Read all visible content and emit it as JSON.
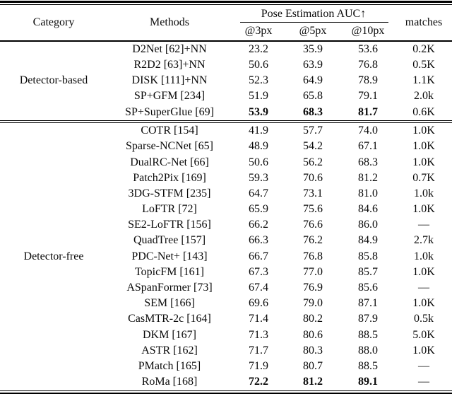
{
  "page": {
    "background_color": "#ffffff",
    "text_color": "#0a0a0a"
  },
  "table": {
    "headers": {
      "category": "Category",
      "methods": "Methods",
      "auc_group": "Pose Estimation AUC↑",
      "auc_cols": [
        "@3px",
        "@5px",
        "@10px"
      ],
      "matches": "matches"
    },
    "sections": [
      {
        "category": "Detector-based",
        "rows": [
          {
            "method": "D2Net [62]+NN",
            "auc3": "23.2",
            "auc5": "35.9",
            "auc10": "53.6",
            "matches": "0.2K",
            "bold": false
          },
          {
            "method": "R2D2 [63]+NN",
            "auc3": "50.6",
            "auc5": "63.9",
            "auc10": "76.8",
            "matches": "0.5K",
            "bold": false
          },
          {
            "method": "DISK [111]+NN",
            "auc3": "52.3",
            "auc5": "64.9",
            "auc10": "78.9",
            "matches": "1.1K",
            "bold": false
          },
          {
            "method": "SP+GFM [234]",
            "auc3": "51.9",
            "auc5": "65.8",
            "auc10": "79.1",
            "matches": "2.0k",
            "bold": false
          },
          {
            "method": "SP+SuperGlue [69]",
            "auc3": "53.9",
            "auc5": "68.3",
            "auc10": "81.7",
            "matches": "0.6K",
            "bold": true
          }
        ]
      },
      {
        "category": "Detector-free",
        "rows": [
          {
            "method": "COTR [154]",
            "auc3": "41.9",
            "auc5": "57.7",
            "auc10": "74.0",
            "matches": "1.0K",
            "bold": false
          },
          {
            "method": "Sparse-NCNet [65]",
            "auc3": "48.9",
            "auc5": "54.2",
            "auc10": "67.1",
            "matches": "1.0K",
            "bold": false
          },
          {
            "method": "DualRC-Net [66]",
            "auc3": "50.6",
            "auc5": "56.2",
            "auc10": "68.3",
            "matches": "1.0K",
            "bold": false
          },
          {
            "method": "Patch2Pix [169]",
            "auc3": "59.3",
            "auc5": "70.6",
            "auc10": "81.2",
            "matches": "0.7K",
            "bold": false
          },
          {
            "method": "3DG-STFM [235]",
            "auc3": "64.7",
            "auc5": "73.1",
            "auc10": "81.0",
            "matches": "1.0k",
            "bold": false
          },
          {
            "method": "LoFTR [72]",
            "auc3": "65.9",
            "auc5": "75.6",
            "auc10": "84.6",
            "matches": "1.0K",
            "bold": false
          },
          {
            "method": "SE2-LoFTR [156]",
            "auc3": "66.2",
            "auc5": "76.6",
            "auc10": "86.0",
            "matches": "—",
            "bold": false
          },
          {
            "method": "QuadTree [157]",
            "auc3": "66.3",
            "auc5": "76.2",
            "auc10": "84.9",
            "matches": "2.7k",
            "bold": false
          },
          {
            "method": "PDC-Net+ [143]",
            "auc3": "66.7",
            "auc5": "76.8",
            "auc10": "85.8",
            "matches": "1.0k",
            "bold": false
          },
          {
            "method": "TopicFM [161]",
            "auc3": "67.3",
            "auc5": "77.0",
            "auc10": "85.7",
            "matches": "1.0K",
            "bold": false
          },
          {
            "method": "ASpanFormer [73]",
            "auc3": "67.4",
            "auc5": "76.9",
            "auc10": "85.6",
            "matches": "—",
            "bold": false
          },
          {
            "method": "SEM [166]",
            "auc3": "69.6",
            "auc5": "79.0",
            "auc10": "87.1",
            "matches": "1.0K",
            "bold": false
          },
          {
            "method": "CasMTR-2c [164]",
            "auc3": "71.4",
            "auc5": "80.2",
            "auc10": "87.9",
            "matches": "0.5k",
            "bold": false
          },
          {
            "method": "DKM [167]",
            "auc3": "71.3",
            "auc5": "80.6",
            "auc10": "88.5",
            "matches": "5.0K",
            "bold": false
          },
          {
            "method": "ASTR [162]",
            "auc3": "71.7",
            "auc5": "80.3",
            "auc10": "88.0",
            "matches": "1.0K",
            "bold": false
          },
          {
            "method": "PMatch [165]",
            "auc3": "71.9",
            "auc5": "80.7",
            "auc10": "88.5",
            "matches": "—",
            "bold": false
          },
          {
            "method": "RoMa [168]",
            "auc3": "72.2",
            "auc5": "81.2",
            "auc10": "89.1",
            "matches": "—",
            "bold": true
          }
        ]
      }
    ]
  }
}
